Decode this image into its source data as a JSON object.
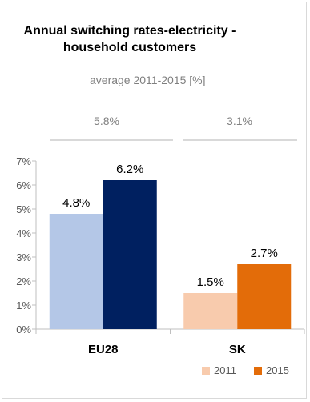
{
  "chart_data": {
    "type": "bar",
    "title": [
      "Annual switching rates-electricity -",
      "household customers"
    ],
    "subtitle": "average 2011-2015 [%]",
    "categories": [
      "EU28",
      "SK"
    ],
    "averages": [
      "5.8%",
      "3.1%"
    ],
    "series": [
      {
        "name": "2011",
        "values": [
          4.8,
          1.5
        ],
        "labels": [
          "4.8%",
          "1.5%"
        ],
        "colors": [
          "#b4c7e7",
          "#f8cbad"
        ]
      },
      {
        "name": "2015",
        "values": [
          6.2,
          2.7
        ],
        "labels": [
          "6.2%",
          "2.7%"
        ],
        "colors": [
          "#002060",
          "#e36c09"
        ]
      }
    ],
    "ylim": [
      0,
      7
    ],
    "yticks": [
      "0%",
      "1%",
      "2%",
      "3%",
      "4%",
      "5%",
      "6%",
      "7%"
    ],
    "legend": {
      "placement": "bottom-right",
      "items": [
        {
          "label": "2011",
          "color": "#f8cbad"
        },
        {
          "label": "2015",
          "color": "#e36c09"
        }
      ]
    }
  }
}
